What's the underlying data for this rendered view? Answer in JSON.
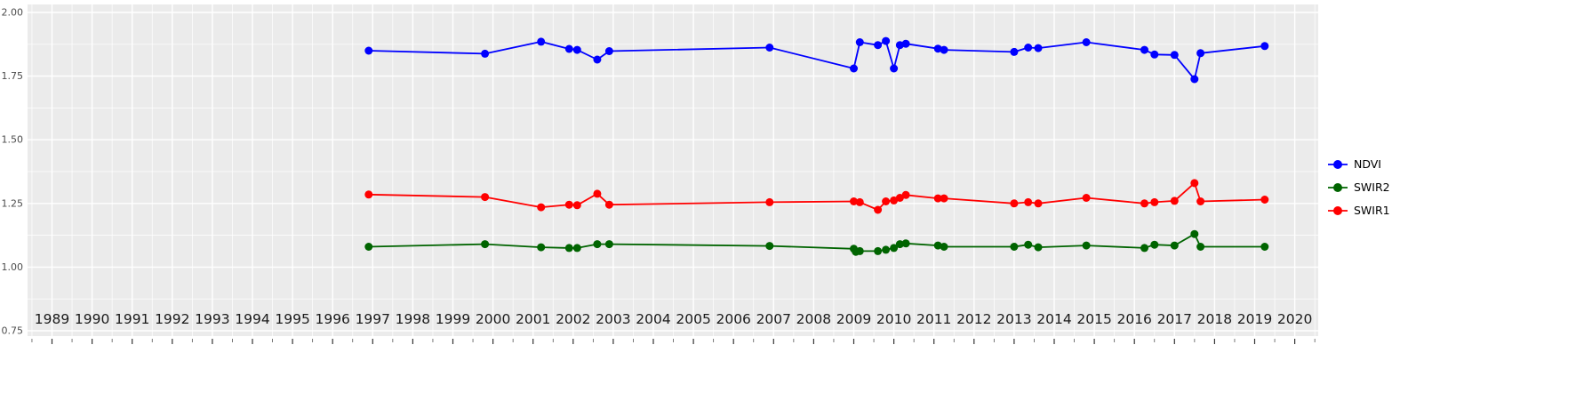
{
  "chart_data": {
    "type": "line",
    "title": "",
    "xlabel": "",
    "ylabel": "",
    "grid": true,
    "legend_position": "right",
    "panel_bg": "#EBEBEB",
    "grid_color": "#FFFFFF",
    "tick_label_color": "#4D4D4D",
    "x_label_color": "#1A1A1A",
    "x_ticks": [
      1989,
      1990,
      1991,
      1992,
      1993,
      1994,
      1995,
      1996,
      1997,
      1998,
      1999,
      2000,
      2001,
      2002,
      2003,
      2004,
      2005,
      2006,
      2007,
      2008,
      2009,
      2010,
      2011,
      2012,
      2013,
      2014,
      2015,
      2016,
      2017,
      2018,
      2019,
      2020
    ],
    "y_ticks": [
      0.75,
      1.0,
      1.25,
      1.5,
      1.75,
      2.0
    ],
    "y_tick_labels": [
      "0.75",
      "1.00",
      "1.25",
      "1.50",
      "1.75",
      "2.00"
    ],
    "xlim": [
      1988.4,
      2020.6
    ],
    "ylim": [
      0.75,
      2.0
    ],
    "series": [
      {
        "name": "NDVI",
        "color": "#0000FF",
        "points": [
          [
            1996.9,
            1.85
          ],
          [
            1999.8,
            1.838
          ],
          [
            2001.2,
            1.885
          ],
          [
            2001.9,
            1.857
          ],
          [
            2002.1,
            1.853
          ],
          [
            2002.6,
            1.815
          ],
          [
            2002.9,
            1.848
          ],
          [
            2006.9,
            1.862
          ],
          [
            2009.0,
            1.78
          ],
          [
            2009.15,
            1.883
          ],
          [
            2009.6,
            1.872
          ],
          [
            2009.8,
            1.888
          ],
          [
            2010.0,
            1.78
          ],
          [
            2010.15,
            1.872
          ],
          [
            2010.3,
            1.877
          ],
          [
            2011.1,
            1.858
          ],
          [
            2011.25,
            1.853
          ],
          [
            2013.0,
            1.845
          ],
          [
            2013.35,
            1.862
          ],
          [
            2013.6,
            1.86
          ],
          [
            2014.8,
            1.883
          ],
          [
            2016.25,
            1.853
          ],
          [
            2016.5,
            1.835
          ],
          [
            2017.0,
            1.833
          ],
          [
            2017.5,
            1.738
          ],
          [
            2017.65,
            1.84
          ],
          [
            2019.25,
            1.868
          ]
        ]
      },
      {
        "name": "SWIR2",
        "color": "#006400",
        "points": [
          [
            1996.9,
            1.08
          ],
          [
            1999.8,
            1.09
          ],
          [
            2001.2,
            1.078
          ],
          [
            2001.9,
            1.075
          ],
          [
            2002.1,
            1.075
          ],
          [
            2002.6,
            1.09
          ],
          [
            2002.9,
            1.09
          ],
          [
            2006.9,
            1.083
          ],
          [
            2009.0,
            1.072
          ],
          [
            2009.05,
            1.06
          ],
          [
            2009.15,
            1.063
          ],
          [
            2009.6,
            1.063
          ],
          [
            2009.8,
            1.068
          ],
          [
            2010.0,
            1.075
          ],
          [
            2010.15,
            1.09
          ],
          [
            2010.3,
            1.093
          ],
          [
            2011.1,
            1.085
          ],
          [
            2011.25,
            1.08
          ],
          [
            2013.0,
            1.08
          ],
          [
            2013.35,
            1.088
          ],
          [
            2013.6,
            1.078
          ],
          [
            2014.8,
            1.085
          ],
          [
            2016.25,
            1.075
          ],
          [
            2016.5,
            1.088
          ],
          [
            2017.0,
            1.085
          ],
          [
            2017.5,
            1.13
          ],
          [
            2017.65,
            1.08
          ],
          [
            2019.25,
            1.08
          ]
        ]
      },
      {
        "name": "SWIR1",
        "color": "#FF0000",
        "points": [
          [
            1996.9,
            1.285
          ],
          [
            1999.8,
            1.275
          ],
          [
            2001.2,
            1.235
          ],
          [
            2001.9,
            1.245
          ],
          [
            2002.1,
            1.243
          ],
          [
            2002.6,
            1.288
          ],
          [
            2002.9,
            1.245
          ],
          [
            2006.9,
            1.255
          ],
          [
            2009.0,
            1.258
          ],
          [
            2009.15,
            1.255
          ],
          [
            2009.6,
            1.225
          ],
          [
            2009.8,
            1.258
          ],
          [
            2010.0,
            1.262
          ],
          [
            2010.15,
            1.272
          ],
          [
            2010.3,
            1.283
          ],
          [
            2011.1,
            1.27
          ],
          [
            2011.25,
            1.27
          ],
          [
            2013.0,
            1.25
          ],
          [
            2013.35,
            1.255
          ],
          [
            2013.6,
            1.25
          ],
          [
            2014.8,
            1.272
          ],
          [
            2016.25,
            1.25
          ],
          [
            2016.5,
            1.255
          ],
          [
            2017.0,
            1.26
          ],
          [
            2017.5,
            1.33
          ],
          [
            2017.65,
            1.258
          ],
          [
            2019.25,
            1.265
          ]
        ]
      }
    ],
    "legend": [
      {
        "label": "NDVI"
      },
      {
        "label": "SWIR2"
      },
      {
        "label": "SWIR1"
      }
    ]
  }
}
